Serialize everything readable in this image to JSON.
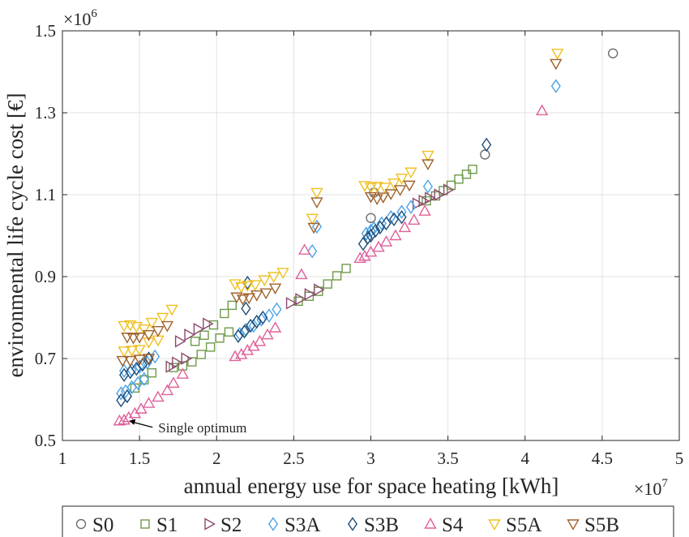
{
  "chart_data": {
    "type": "scatter",
    "xlabel": "annual energy use for space heating [kWh]",
    "ylabel": "environmental life cycle cost [€]",
    "x_multiplier": "×10",
    "x_multiplier_exp": "7",
    "y_multiplier": "×10",
    "y_multiplier_exp": "6",
    "xlim": [
      1,
      5
    ],
    "ylim": [
      0.5,
      1.5
    ],
    "x_ticks": [
      1,
      1.5,
      2,
      2.5,
      3,
      3.5,
      4,
      4.5,
      5
    ],
    "x_tick_labels": [
      "1",
      "1.5",
      "2",
      "2.5",
      "3",
      "3.5",
      "4",
      "4.5",
      "5"
    ],
    "y_ticks": [
      0.5,
      0.7,
      0.9,
      1.1,
      1.3,
      1.5
    ],
    "y_tick_labels": [
      "0.5",
      "0.7",
      "0.9",
      "1.1",
      "1.3",
      "1.5"
    ],
    "grid": true,
    "legend_position": "bottom",
    "annotation": {
      "text": "Single optimum",
      "x": 1.38,
      "y": 0.548
    },
    "series": [
      {
        "name": "S0",
        "marker": "circle",
        "color": "#6e6e6e",
        "points": [
          [
            3.0,
            1.043
          ],
          [
            3.02,
            1.105
          ],
          [
            3.74,
            1.198
          ],
          [
            4.57,
            1.445
          ]
        ]
      },
      {
        "name": "S1",
        "marker": "square",
        "color": "#6e9a4a",
        "points": [
          [
            1.47,
            0.628
          ],
          [
            1.53,
            0.648
          ],
          [
            1.58,
            0.665
          ],
          [
            1.72,
            0.678
          ],
          [
            1.78,
            0.682
          ],
          [
            1.84,
            0.692
          ],
          [
            1.9,
            0.71
          ],
          [
            1.96,
            0.728
          ],
          [
            2.02,
            0.75
          ],
          [
            2.08,
            0.765
          ],
          [
            1.86,
            0.742
          ],
          [
            1.92,
            0.757
          ],
          [
            1.98,
            0.782
          ],
          [
            2.05,
            0.81
          ],
          [
            2.1,
            0.83
          ],
          [
            2.53,
            0.84
          ],
          [
            2.6,
            0.852
          ],
          [
            2.66,
            0.864
          ],
          [
            2.72,
            0.882
          ],
          [
            2.78,
            0.902
          ],
          [
            2.84,
            0.92
          ],
          [
            3.36,
            1.085
          ],
          [
            3.42,
            1.097
          ],
          [
            3.47,
            1.11
          ],
          [
            3.52,
            1.123
          ],
          [
            3.57,
            1.138
          ],
          [
            3.62,
            1.15
          ],
          [
            3.66,
            1.162
          ]
        ]
      },
      {
        "name": "S2",
        "marker": "triangle-right",
        "color": "#8c4a6e",
        "points": [
          [
            1.76,
            0.742
          ],
          [
            1.82,
            0.758
          ],
          [
            1.88,
            0.772
          ],
          [
            1.94,
            0.785
          ],
          [
            1.7,
            0.68
          ],
          [
            1.74,
            0.69
          ],
          [
            1.8,
            0.7
          ],
          [
            2.48,
            0.835
          ],
          [
            2.54,
            0.845
          ],
          [
            2.6,
            0.857
          ],
          [
            2.66,
            0.868
          ],
          [
            3.3,
            1.078
          ],
          [
            3.34,
            1.085
          ],
          [
            3.38,
            1.092
          ],
          [
            3.44,
            1.1
          ],
          [
            3.5,
            1.112
          ]
        ]
      },
      {
        "name": "S3A",
        "marker": "diamond",
        "color": "#4aa3e8",
        "points": [
          [
            1.38,
            0.615
          ],
          [
            1.41,
            0.62
          ],
          [
            1.45,
            0.63
          ],
          [
            1.49,
            0.64
          ],
          [
            1.53,
            0.65
          ],
          [
            1.4,
            0.67
          ],
          [
            1.45,
            0.672
          ],
          [
            1.5,
            0.68
          ],
          [
            1.55,
            0.69
          ],
          [
            1.6,
            0.705
          ],
          [
            2.15,
            0.76
          ],
          [
            2.19,
            0.77
          ],
          [
            2.24,
            0.78
          ],
          [
            2.29,
            0.795
          ],
          [
            2.34,
            0.805
          ],
          [
            2.39,
            0.82
          ],
          [
            2.62,
            0.962
          ],
          [
            2.65,
            1.022
          ],
          [
            2.97,
            1.005
          ],
          [
            3.02,
            1.018
          ],
          [
            3.07,
            1.03
          ],
          [
            3.13,
            1.045
          ],
          [
            3.2,
            1.058
          ],
          [
            3.26,
            1.07
          ],
          [
            3.0,
            1.012
          ],
          [
            3.37,
            1.12
          ],
          [
            4.2,
            1.365
          ]
        ]
      },
      {
        "name": "S3B",
        "marker": "diamond",
        "color": "#1f4e79",
        "points": [
          [
            1.38,
            0.598
          ],
          [
            1.42,
            0.608
          ],
          [
            1.4,
            0.66
          ],
          [
            1.44,
            0.667
          ],
          [
            1.48,
            0.675
          ],
          [
            1.52,
            0.685
          ],
          [
            1.56,
            0.7
          ],
          [
            2.14,
            0.755
          ],
          [
            2.18,
            0.766
          ],
          [
            2.22,
            0.78
          ],
          [
            2.26,
            0.79
          ],
          [
            2.3,
            0.8
          ],
          [
            2.19,
            0.822
          ],
          [
            2.2,
            0.885
          ],
          [
            2.95,
            0.98
          ],
          [
            2.98,
            0.995
          ],
          [
            3.0,
            1.0
          ],
          [
            3.03,
            1.012
          ],
          [
            3.06,
            1.02
          ],
          [
            3.1,
            1.03
          ],
          [
            3.15,
            1.04
          ],
          [
            3.2,
            1.045
          ],
          [
            3.75,
            1.222
          ]
        ]
      },
      {
        "name": "S4",
        "marker": "triangle-up",
        "color": "#e0609a",
        "points": [
          [
            1.37,
            0.548
          ],
          [
            1.4,
            0.55
          ],
          [
            1.43,
            0.556
          ],
          [
            1.47,
            0.566
          ],
          [
            1.51,
            0.577
          ],
          [
            1.56,
            0.591
          ],
          [
            1.62,
            0.606
          ],
          [
            1.68,
            0.622
          ],
          [
            1.72,
            0.64
          ],
          [
            1.78,
            0.662
          ],
          [
            2.12,
            0.705
          ],
          [
            2.16,
            0.71
          ],
          [
            2.2,
            0.72
          ],
          [
            2.24,
            0.73
          ],
          [
            2.28,
            0.742
          ],
          [
            2.33,
            0.758
          ],
          [
            2.38,
            0.775
          ],
          [
            2.55,
            0.905
          ],
          [
            2.57,
            0.965
          ],
          [
            2.93,
            0.945
          ],
          [
            2.96,
            0.95
          ],
          [
            3.0,
            0.96
          ],
          [
            3.05,
            0.972
          ],
          [
            3.1,
            0.985
          ],
          [
            3.16,
            1.0
          ],
          [
            3.22,
            1.02
          ],
          [
            3.28,
            1.038
          ],
          [
            3.35,
            1.06
          ],
          [
            4.11,
            1.305
          ]
        ]
      },
      {
        "name": "S5A",
        "marker": "triangle-down",
        "color": "#f0c020",
        "points": [
          [
            1.4,
            0.78
          ],
          [
            1.44,
            0.782
          ],
          [
            1.48,
            0.778
          ],
          [
            1.53,
            0.772
          ],
          [
            1.58,
            0.788
          ],
          [
            1.65,
            0.8
          ],
          [
            1.71,
            0.82
          ],
          [
            1.4,
            0.718
          ],
          [
            1.45,
            0.72
          ],
          [
            1.5,
            0.722
          ],
          [
            1.56,
            0.74
          ],
          [
            1.62,
            0.745
          ],
          [
            2.12,
            0.882
          ],
          [
            2.16,
            0.875
          ],
          [
            2.2,
            0.878
          ],
          [
            2.25,
            0.88
          ],
          [
            2.31,
            0.892
          ],
          [
            2.37,
            0.9
          ],
          [
            2.43,
            0.91
          ],
          [
            2.62,
            1.042
          ],
          [
            2.65,
            1.105
          ],
          [
            2.96,
            1.122
          ],
          [
            3.0,
            1.118
          ],
          [
            3.04,
            1.12
          ],
          [
            3.09,
            1.118
          ],
          [
            3.15,
            1.128
          ],
          [
            3.2,
            1.14
          ],
          [
            3.26,
            1.155
          ],
          [
            3.37,
            1.196
          ],
          [
            4.21,
            1.445
          ]
        ]
      },
      {
        "name": "S5B",
        "marker": "triangle-down",
        "color": "#a0622a",
        "points": [
          [
            1.42,
            0.752
          ],
          [
            1.46,
            0.75
          ],
          [
            1.5,
            0.752
          ],
          [
            1.56,
            0.758
          ],
          [
            1.62,
            0.768
          ],
          [
            1.68,
            0.78
          ],
          [
            1.39,
            0.695
          ],
          [
            1.44,
            0.695
          ],
          [
            1.5,
            0.698
          ],
          [
            1.56,
            0.7
          ],
          [
            2.13,
            0.85
          ],
          [
            2.17,
            0.845
          ],
          [
            2.21,
            0.848
          ],
          [
            2.26,
            0.855
          ],
          [
            2.32,
            0.86
          ],
          [
            2.38,
            0.872
          ],
          [
            2.63,
            1.02
          ],
          [
            2.65,
            1.082
          ],
          [
            3.0,
            1.095
          ],
          [
            3.04,
            1.09
          ],
          [
            3.08,
            1.094
          ],
          [
            3.13,
            1.102
          ],
          [
            3.19,
            1.112
          ],
          [
            3.25,
            1.123
          ],
          [
            3.37,
            1.175
          ],
          [
            4.2,
            1.42
          ]
        ]
      }
    ]
  }
}
